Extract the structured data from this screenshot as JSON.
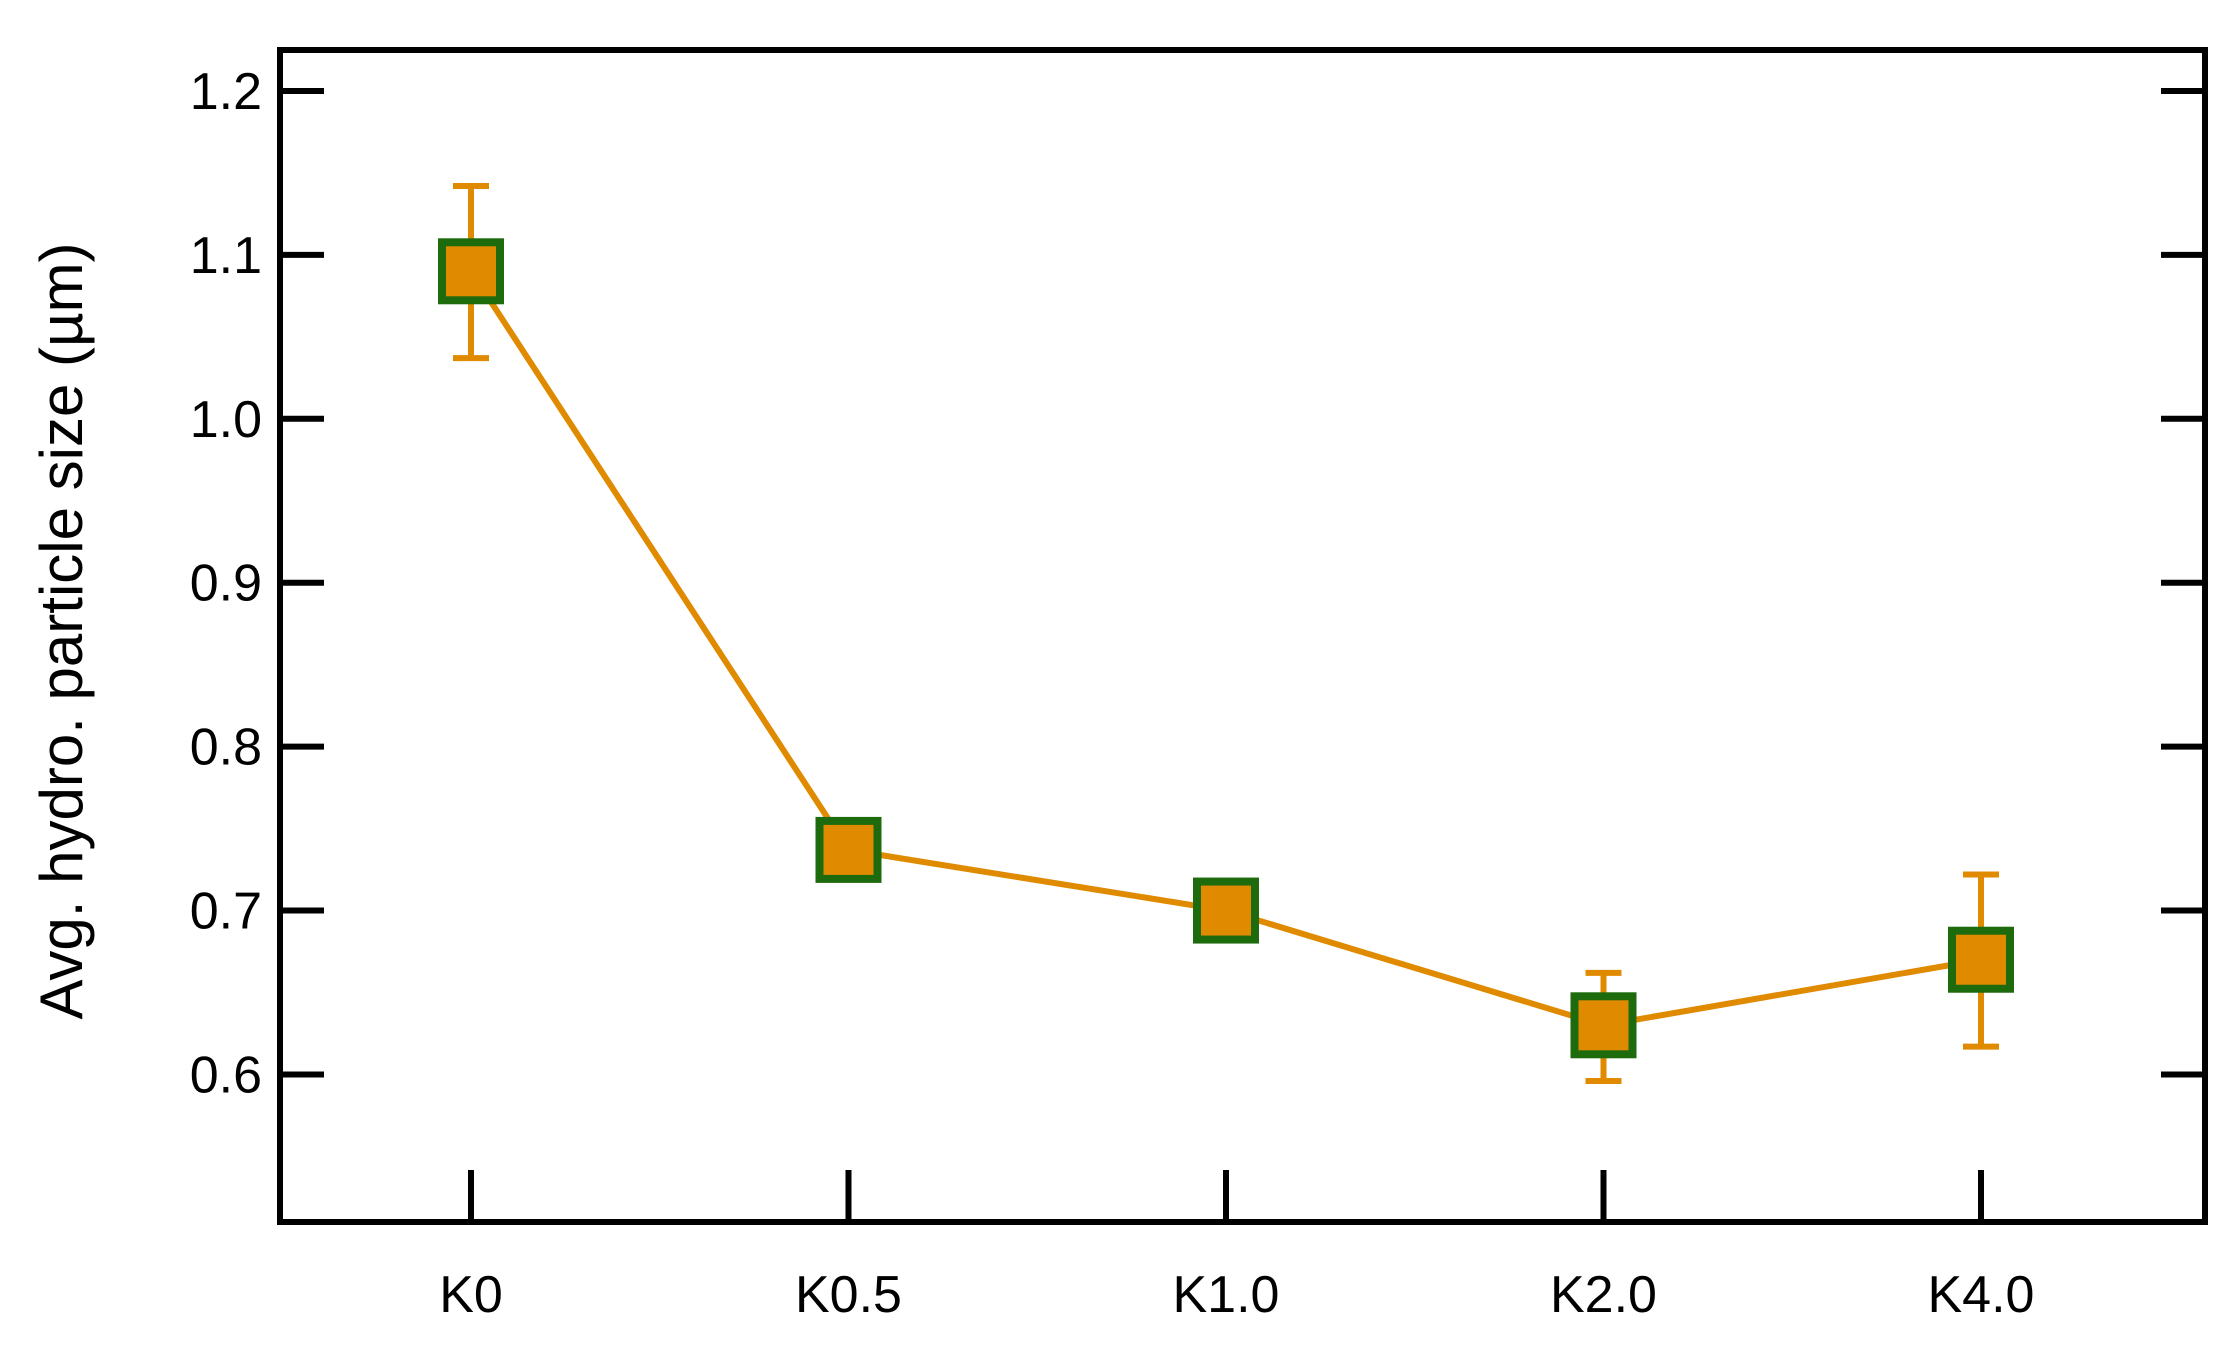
{
  "chart_data": {
    "type": "line",
    "title": "",
    "xlabel": "",
    "ylabel": "Avg. hydro. particle size (µm)",
    "categories": [
      "K0",
      "K0.5",
      "K1.0",
      "K2.0",
      "K4.0"
    ],
    "series": [
      {
        "values": [
          1.09,
          0.737,
          0.7,
          0.63,
          0.67
        ],
        "error_low": [
          1.037,
          0.737,
          0.7,
          0.596,
          0.617
        ],
        "error_high": [
          1.142,
          0.737,
          0.7,
          0.662,
          0.722
        ]
      }
    ],
    "ylim": [
      0.51,
      1.225
    ],
    "yticks": [
      0.6,
      0.7,
      0.8,
      0.9,
      1.0,
      1.1,
      1.2
    ],
    "ytick_labels": [
      "0.6",
      "0.7",
      "0.8",
      "0.9",
      "1.0",
      "1.1",
      "1.2"
    ],
    "grid": false,
    "legend": "none",
    "colors": {
      "line": "#E08A00",
      "marker_fill": "#E08A00",
      "marker_edge": "#1E6B0E",
      "axis": "#000000"
    }
  }
}
